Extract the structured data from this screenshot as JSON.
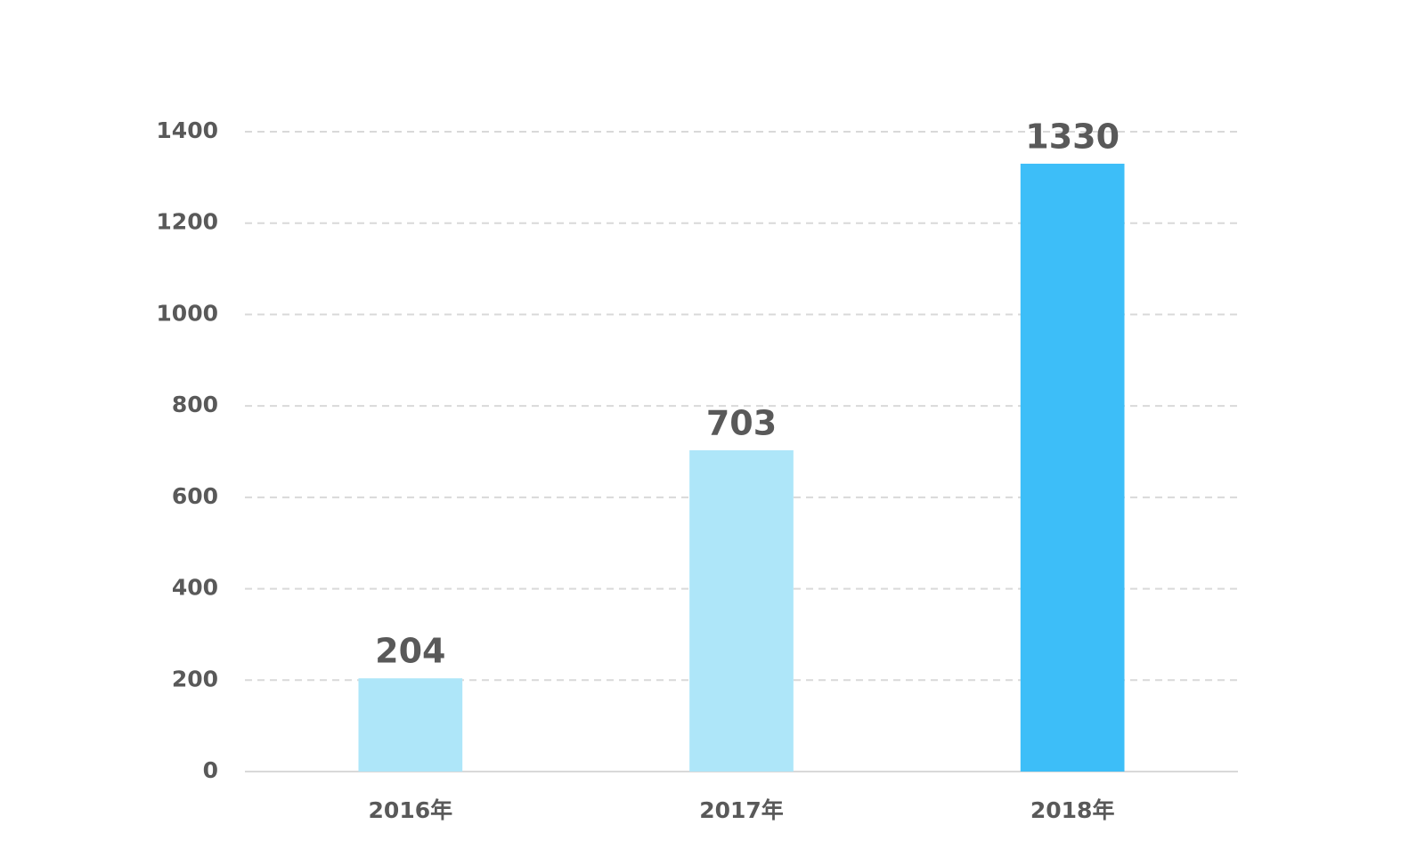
{
  "chart_data": {
    "type": "bar",
    "categories": [
      "2016年",
      "2017年",
      "2018年"
    ],
    "values": [
      204,
      703,
      1330
    ],
    "colors": [
      "#aee6f9",
      "#aee6f9",
      "#3dbef8"
    ],
    "ylim": [
      0,
      1400
    ],
    "yticks": [
      0,
      200,
      400,
      600,
      800,
      1000,
      1200,
      1400
    ],
    "grid": true
  }
}
